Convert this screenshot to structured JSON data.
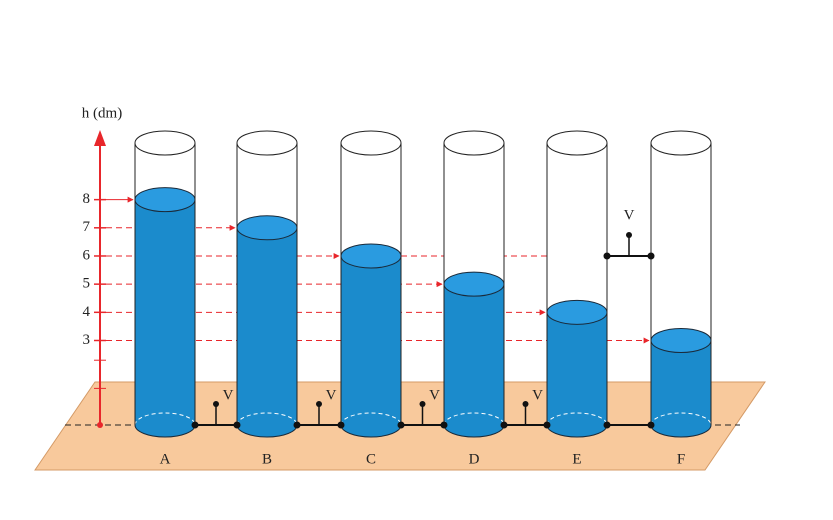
{
  "axis": {
    "label": "h (dm)",
    "ticks": [
      8,
      7,
      6,
      5,
      4,
      3
    ]
  },
  "valve_label": "V",
  "tanks": [
    {
      "label": "A",
      "level": 8
    },
    {
      "label": "B",
      "level": 7
    },
    {
      "label": "C",
      "level": 6
    },
    {
      "label": "D",
      "level": 5
    },
    {
      "label": "E",
      "level": 4
    },
    {
      "label": "F",
      "level": 3
    }
  ]
}
